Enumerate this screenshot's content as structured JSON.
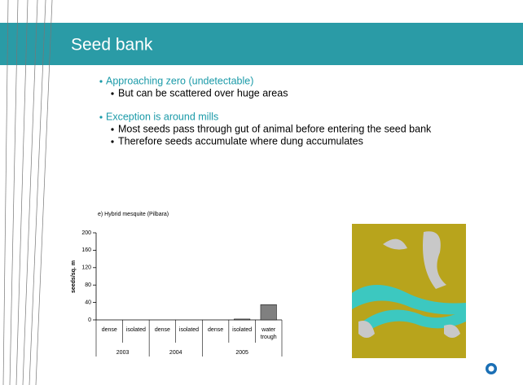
{
  "slide": {
    "title": "Seed bank",
    "bullets": [
      {
        "text": "Approaching zero (undetectable)",
        "subs": [
          "But can be scattered over huge areas"
        ]
      },
      {
        "text": "Exception is around mills",
        "subs": [
          "Most seeds pass through gut of animal before entering the seed bank",
          "Therefore seeds accumulate where dung accumulates"
        ]
      }
    ]
  },
  "chart_data": {
    "type": "bar",
    "title": "e) Hybrid mesquite (Pilbara)",
    "y_label": "seeds/sq. m",
    "categories": [
      "dense",
      "isolated",
      "dense",
      "isolated",
      "dense",
      "isolated",
      "water trough"
    ],
    "groups": [
      {
        "label": "2003",
        "count": 2
      },
      {
        "label": "2004",
        "count": 2
      },
      {
        "label": "2005",
        "count": 3
      }
    ],
    "values": [
      0,
      0,
      0,
      0,
      0,
      2,
      35
    ],
    "color": "#808080",
    "ylim": [
      0,
      200
    ],
    "yticks": [
      0,
      40,
      80,
      120,
      160,
      200
    ]
  }
}
